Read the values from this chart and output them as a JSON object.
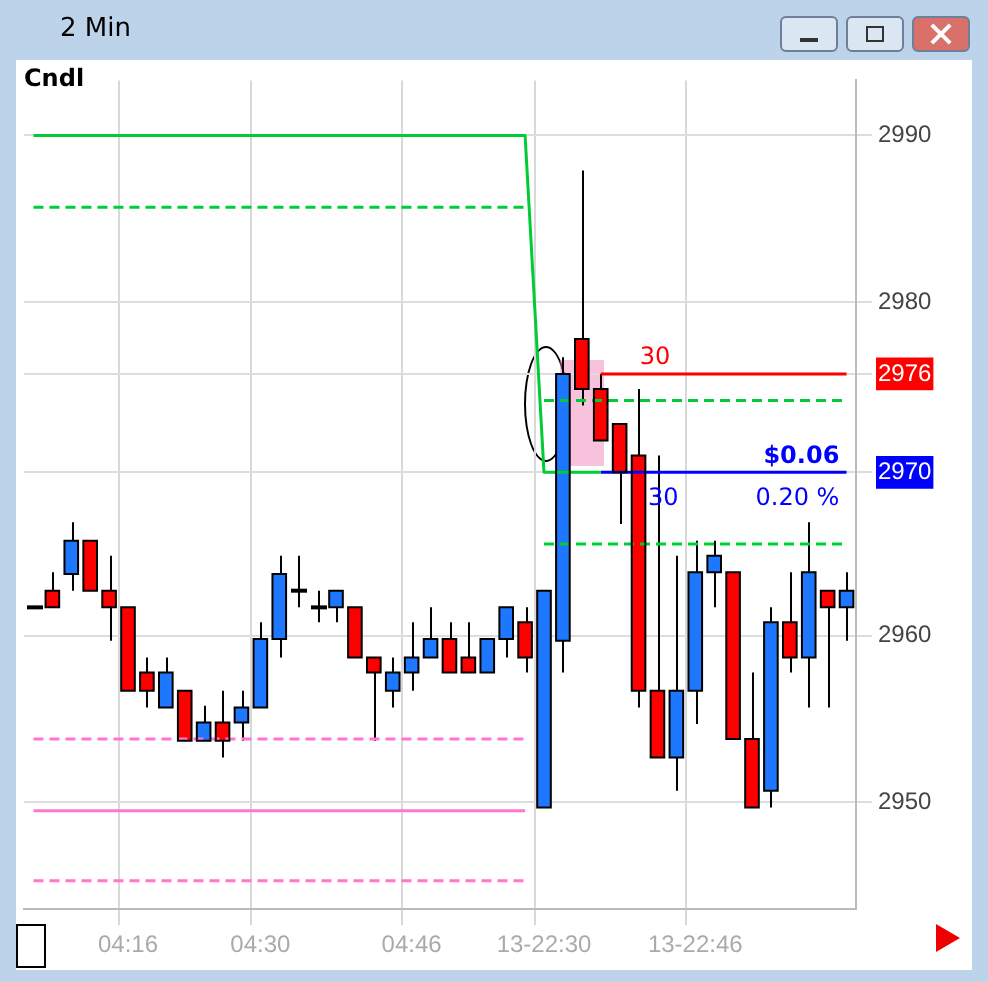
{
  "chart_data": {
    "type": "candlestick",
    "title": "2 Min",
    "subtitle": "Cndl",
    "categories": [
      null,
      null,
      null,
      null,
      null,
      "04:16",
      null,
      null,
      null,
      null,
      null,
      null,
      "04:30",
      null,
      null,
      null,
      null,
      null,
      null,
      null,
      "04:46",
      null,
      null,
      null,
      null,
      null,
      null,
      "13-22:30",
      null,
      null,
      null,
      null,
      null,
      null,
      null,
      "13-22:46",
      null,
      null,
      null,
      null,
      null,
      null,
      null,
      null
    ],
    "ohlc": [
      [
        2961.7,
        2961.7,
        2961.7,
        2961.7
      ],
      [
        2962.7,
        2963.8,
        2961.7,
        2961.7
      ],
      [
        2963.7,
        2966.8,
        2962.7,
        2965.7
      ],
      [
        2965.7,
        2965.7,
        2962.7,
        2962.7
      ],
      [
        2962.7,
        2964.8,
        2959.7,
        2961.7
      ],
      [
        2961.7,
        2961.7,
        2956.7,
        2956.7
      ],
      [
        2957.8,
        2958.7,
        2955.7,
        2956.7
      ],
      [
        2955.7,
        2958.7,
        2955.7,
        2957.8
      ],
      [
        2956.7,
        2956.7,
        2953.7,
        2953.7
      ],
      [
        2953.7,
        2955.8,
        2953.7,
        2954.8
      ],
      [
        2954.8,
        2956.7,
        2952.7,
        2953.7
      ],
      [
        2954.8,
        2956.7,
        2953.7,
        2955.7
      ],
      [
        2955.7,
        2960.8,
        2955.7,
        2959.8
      ],
      [
        2959.8,
        2964.8,
        2958.7,
        2963.7
      ],
      [
        2962.7,
        2964.8,
        2961.7,
        2962.7
      ],
      [
        2961.7,
        2962.7,
        2960.8,
        2961.7
      ],
      [
        2961.7,
        2962.7,
        2960.8,
        2962.7
      ],
      [
        2961.7,
        2961.7,
        2958.7,
        2958.7
      ],
      [
        2958.7,
        2958.7,
        2953.7,
        2957.8
      ],
      [
        2956.7,
        2958.7,
        2955.7,
        2957.8
      ],
      [
        2957.8,
        2960.8,
        2956.7,
        2958.7
      ],
      [
        2958.7,
        2961.7,
        2958.7,
        2959.8
      ],
      [
        2959.8,
        2960.8,
        2957.8,
        2957.8
      ],
      [
        2958.7,
        2960.8,
        2957.8,
        2957.8
      ],
      [
        2957.8,
        2959.8,
        2957.8,
        2959.8
      ],
      [
        2959.8,
        2961.7,
        2958.7,
        2961.7
      ],
      [
        2960.8,
        2961.7,
        2957.8,
        2958.7
      ],
      [
        2949.7,
        2962.7,
        2949.7,
        2962.7
      ],
      [
        2959.7,
        2976.7,
        2957.8,
        2975.7
      ],
      [
        2977.8,
        2987.9,
        2973.8,
        2974.8
      ],
      [
        2974.8,
        2975.7,
        2971.7,
        2971.7
      ],
      [
        2972.7,
        2972.7,
        2966.7,
        2969.8
      ],
      [
        2970.8,
        2974.8,
        2955.7,
        2956.7
      ],
      [
        2956.7,
        2970.8,
        2952.7,
        2952.7
      ],
      [
        2952.7,
        2964.8,
        2950.7,
        2956.7
      ],
      [
        2956.7,
        2965.7,
        2954.7,
        2963.8
      ],
      [
        2963.8,
        2965.7,
        2961.7,
        2964.8
      ],
      [
        2963.8,
        2963.8,
        2953.8,
        2953.8
      ],
      [
        2953.8,
        2957.8,
        2949.7,
        2949.7
      ],
      [
        2950.7,
        2961.7,
        2949.7,
        2960.8
      ],
      [
        2960.8,
        2963.8,
        2957.8,
        2958.7
      ],
      [
        2958.7,
        2966.8,
        2955.7,
        2963.8
      ],
      [
        2962.7,
        2962.7,
        2955.7,
        2961.7
      ],
      [
        2961.7,
        2963.8,
        2959.7,
        2962.7
      ]
    ],
    "colors": [
      "#000000",
      "#ff0000",
      "#1e78ff",
      "#ff0000",
      "#ff0000",
      "#ff0000",
      "#ff0000",
      "#1e78ff",
      "#ff0000",
      "#1e78ff",
      "#ff0000",
      "#1e78ff",
      "#1e78ff",
      "#1e78ff",
      "#000000",
      "#000000",
      "#1e78ff",
      "#ff0000",
      "#ff0000",
      "#1e78ff",
      "#1e78ff",
      "#1e78ff",
      "#ff0000",
      "#ff0000",
      "#1e78ff",
      "#1e78ff",
      "#ff0000",
      "#1e78ff",
      "#1e78ff",
      "#ff0000",
      "#ff0000",
      "#ff0000",
      "#ff0000",
      "#ff0000",
      "#1e78ff",
      "#1e78ff",
      "#1e78ff",
      "#ff0000",
      "#ff0000",
      "#1e78ff",
      "#ff0000",
      "#1e78ff",
      "#ff0000",
      "#1e78ff"
    ],
    "series": [
      {
        "type": "line",
        "color": "#00cc33",
        "line_style": "solid",
        "values": [
          2990,
          2990,
          2990,
          2990,
          2990,
          2990,
          2990,
          2990,
          2990,
          2990,
          2990,
          2990,
          2990,
          2990,
          2990,
          2990,
          2990,
          2990,
          2990,
          2990,
          2990,
          2990,
          2990,
          2990,
          2990,
          2990,
          2990,
          2969.8,
          2969.8,
          2969.8,
          2969.8,
          null,
          null,
          null,
          null,
          null,
          null,
          null,
          null,
          null,
          null,
          null,
          null,
          null
        ]
      },
      {
        "type": "line",
        "color": "#00cc33",
        "line_style": "dashed",
        "values": [
          2985.7,
          2985.7,
          2985.7,
          2985.7,
          2985.7,
          2985.7,
          2985.7,
          2985.7,
          2985.7,
          2985.7,
          2985.7,
          2985.7,
          2985.7,
          2985.7,
          2985.7,
          2985.7,
          2985.7,
          2985.7,
          2985.7,
          2985.7,
          2985.7,
          2985.7,
          2985.7,
          2985.7,
          2985.7,
          2985.7,
          2985.7,
          null,
          null,
          null,
          null,
          null,
          null,
          null,
          null,
          null,
          null,
          null,
          null,
          null,
          null,
          null,
          null,
          null
        ]
      },
      {
        "type": "line",
        "color": "#00cc33",
        "line_style": "dashed",
        "values": [
          null,
          null,
          null,
          null,
          null,
          null,
          null,
          null,
          null,
          null,
          null,
          null,
          null,
          null,
          null,
          null,
          null,
          null,
          null,
          null,
          null,
          null,
          null,
          null,
          null,
          null,
          null,
          2974.1,
          2974.1,
          2974.1,
          2974.1,
          2974.1,
          2974.1,
          2974.1,
          2974.1,
          2974.1,
          2974.1,
          2974.1,
          2974.1,
          2974.1,
          2974.1,
          2974.1,
          2974.1,
          2974.1
        ]
      },
      {
        "type": "line",
        "color": "#00cc33",
        "line_style": "dashed",
        "values": [
          null,
          null,
          null,
          null,
          null,
          null,
          null,
          null,
          null,
          null,
          null,
          null,
          null,
          null,
          null,
          null,
          null,
          null,
          null,
          null,
          null,
          null,
          null,
          null,
          null,
          null,
          null,
          2965.5,
          2965.5,
          2965.5,
          2965.5,
          2965.5,
          2965.5,
          2965.5,
          2965.5,
          2965.5,
          2965.5,
          2965.5,
          2965.5,
          2965.5,
          2965.5,
          2965.5,
          2965.5,
          2965.5
        ]
      },
      {
        "type": "line",
        "color": "#ff77cc",
        "line_style": "solid",
        "values": [
          2949.5,
          2949.5,
          2949.5,
          2949.5,
          2949.5,
          2949.5,
          2949.5,
          2949.5,
          2949.5,
          2949.5,
          2949.5,
          2949.5,
          2949.5,
          2949.5,
          2949.5,
          2949.5,
          2949.5,
          2949.5,
          2949.5,
          2949.5,
          2949.5,
          2949.5,
          2949.5,
          2949.5,
          2949.5,
          2949.5,
          2949.5,
          null,
          null,
          null,
          null,
          null,
          null,
          null,
          null,
          null,
          null,
          null,
          null,
          null,
          null,
          null,
          null,
          null
        ]
      },
      {
        "type": "line",
        "color": "#ff77cc",
        "line_style": "dashed",
        "values": [
          2953.8,
          2953.8,
          2953.8,
          2953.8,
          2953.8,
          2953.8,
          2953.8,
          2953.8,
          2953.8,
          2953.8,
          2953.8,
          2953.8,
          2953.8,
          2953.8,
          2953.8,
          2953.8,
          2953.8,
          2953.8,
          2953.8,
          2953.8,
          2953.8,
          2953.8,
          2953.8,
          2953.8,
          2953.8,
          2953.8,
          2953.8,
          null,
          null,
          null,
          null,
          null,
          null,
          null,
          null,
          null,
          null,
          null,
          null,
          null,
          null,
          null,
          null,
          null
        ]
      },
      {
        "type": "line",
        "color": "#ff77cc",
        "line_style": "dashed",
        "values": [
          2945.3,
          2945.3,
          2945.3,
          2945.3,
          2945.3,
          2945.3,
          2945.3,
          2945.3,
          2945.3,
          2945.3,
          2945.3,
          2945.3,
          2945.3,
          2945.3,
          2945.3,
          2945.3,
          2945.3,
          2945.3,
          2945.3,
          2945.3,
          2945.3,
          2945.3,
          2945.3,
          2945.3,
          2945.3,
          2945.3,
          2945.3,
          null,
          null,
          null,
          null,
          null,
          null,
          null,
          null,
          null,
          null,
          null,
          null,
          null,
          null,
          null,
          null,
          null
        ]
      },
      {
        "type": "line",
        "color": "#ff0000",
        "line_style": "solid",
        "values": [
          null,
          null,
          null,
          null,
          null,
          null,
          null,
          null,
          null,
          null,
          null,
          null,
          null,
          null,
          null,
          null,
          null,
          null,
          null,
          null,
          null,
          null,
          null,
          null,
          null,
          null,
          null,
          null,
          null,
          null,
          2975.7,
          2975.7,
          2975.7,
          2975.7,
          2975.7,
          2975.7,
          2975.7,
          2975.7,
          2975.7,
          2975.7,
          2975.7,
          2975.7,
          2975.7,
          2975.7
        ]
      },
      {
        "type": "line",
        "color": "#0000ff",
        "line_style": "solid",
        "values": [
          null,
          null,
          null,
          null,
          null,
          null,
          null,
          null,
          null,
          null,
          null,
          null,
          null,
          null,
          null,
          null,
          null,
          null,
          null,
          null,
          null,
          null,
          null,
          null,
          null,
          null,
          null,
          null,
          null,
          null,
          2969.8,
          2969.8,
          2969.8,
          2969.8,
          2969.8,
          2969.8,
          2969.8,
          2969.8,
          2969.8,
          2969.8,
          2969.8,
          2969.8,
          2969.8,
          2969.8
        ]
      }
    ],
    "ylim": [
      2943.6,
      2993.3
    ],
    "yticks": [
      2950,
      2960,
      {
        "value": 2969.8,
        "label": "2970"
      },
      {
        "value": 2975.7,
        "label": "2976"
      },
      2980,
      2990
    ],
    "annotations": [
      {
        "text": "30",
        "y": 2975.7
      },
      {
        "text": "$0.06",
        "y": 2969.8
      },
      {
        "text": "30",
        "y": 2969.8
      },
      {
        "text": "0.20 %",
        "y": 2969.8
      }
    ],
    "grid": true,
    "legend": false,
    "marker": "none"
  }
}
